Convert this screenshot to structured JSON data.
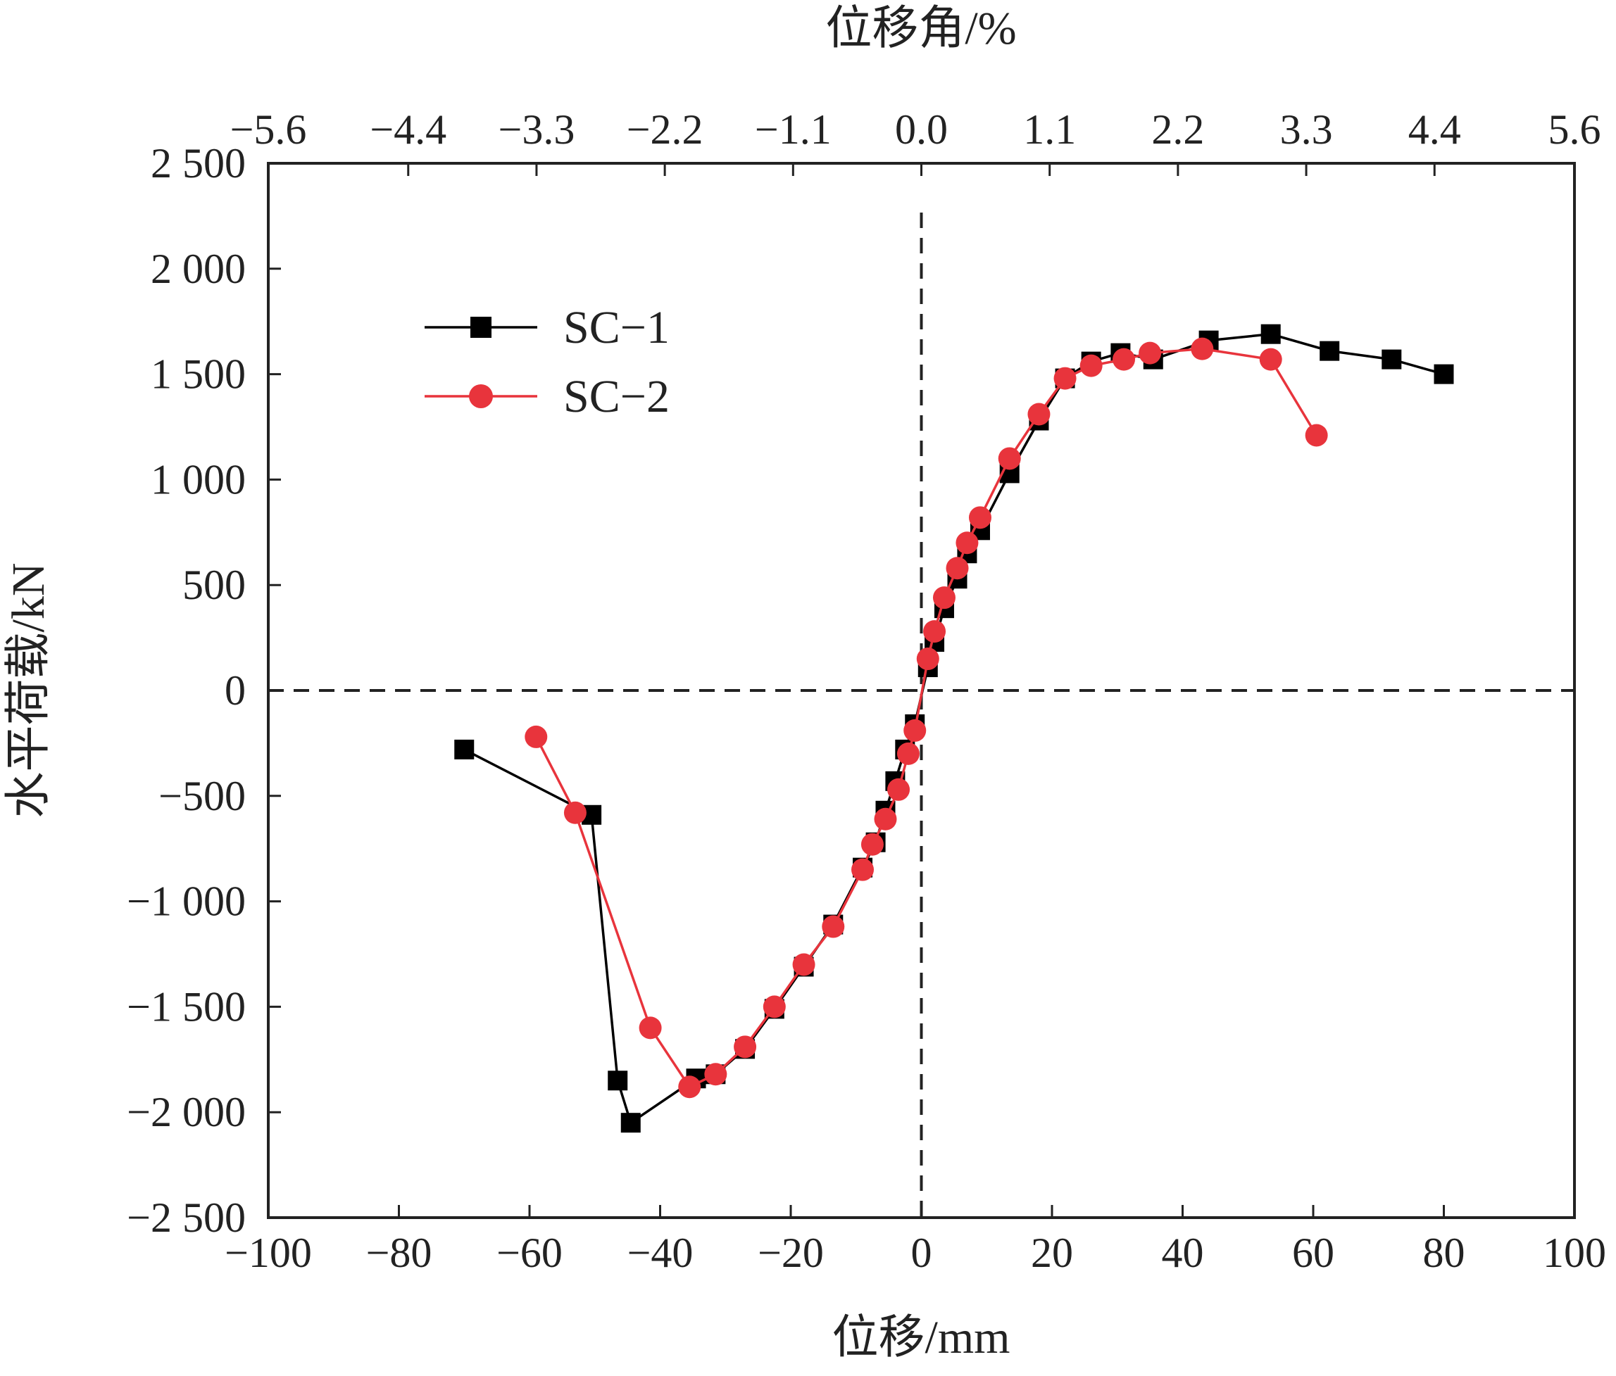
{
  "chart_data": {
    "type": "line",
    "xlabel": "位移/mm",
    "ylabel": "水平荷载/kN",
    "x2label": "位移角/%",
    "xlim": [
      -100,
      100
    ],
    "ylim": [
      -2500,
      2500
    ],
    "x2lim": [
      -5.6,
      5.6
    ],
    "xticks": [
      -100,
      -80,
      -60,
      -40,
      -20,
      0,
      20,
      40,
      60,
      80,
      100
    ],
    "xtick_labels": [
      "−100",
      "−80",
      "−60",
      "−40",
      "−20",
      "0",
      "20",
      "40",
      "60",
      "80",
      "100"
    ],
    "yticks": [
      2500,
      2000,
      1500,
      1000,
      500,
      0,
      -500,
      -1000,
      -1500,
      -2000,
      -2500
    ],
    "ytick_labels": [
      "2 500",
      "2 000",
      "1 500",
      "1 000",
      "500",
      "0",
      "−500",
      "−1 000",
      "−1 500",
      "−2 000",
      "−2 500"
    ],
    "x2ticks": [
      -5.6,
      -4.4,
      -3.3,
      -2.2,
      -1.1,
      0.0,
      1.1,
      2.2,
      3.3,
      4.4,
      5.6
    ],
    "x2tick_labels": [
      "−5.6",
      "−4.4",
      "−3.3",
      "−2.2",
      "−1.1",
      "0.0",
      "1.1",
      "2.2",
      "3.3",
      "4.4",
      "5.6"
    ],
    "grid": false,
    "legend_position": "top-left",
    "reference_lines": [
      "x=0 dashed",
      "y=0 dashed"
    ],
    "series": [
      {
        "name": "SC−1",
        "color": "#000000",
        "marker": "square",
        "points": [
          [
            -70,
            -280
          ],
          [
            -50.5,
            -590
          ],
          [
            -46.5,
            -1850
          ],
          [
            -44.5,
            -2050
          ],
          [
            -34.5,
            -1840
          ],
          [
            -31.5,
            -1820
          ],
          [
            -27,
            -1700
          ],
          [
            -22.5,
            -1510
          ],
          [
            -18,
            -1310
          ],
          [
            -13.5,
            -1110
          ],
          [
            -9,
            -840
          ],
          [
            -7,
            -720
          ],
          [
            -5.5,
            -570
          ],
          [
            -4,
            -430
          ],
          [
            -2.5,
            -280
          ],
          [
            -1,
            -160
          ],
          [
            1,
            110
          ],
          [
            2,
            230
          ],
          [
            3.5,
            390
          ],
          [
            5.5,
            530
          ],
          [
            7,
            650
          ],
          [
            9,
            760
          ],
          [
            13.5,
            1030
          ],
          [
            18,
            1280
          ],
          [
            22,
            1480
          ],
          [
            26,
            1560
          ],
          [
            30.5,
            1600
          ],
          [
            35.5,
            1570
          ],
          [
            44,
            1660
          ],
          [
            53.5,
            1690
          ],
          [
            62.5,
            1610
          ],
          [
            72,
            1570
          ],
          [
            80,
            1500
          ]
        ]
      },
      {
        "name": "SC−2",
        "color": "#e8343c",
        "marker": "circle",
        "points": [
          [
            -59,
            -220
          ],
          [
            -53,
            -580
          ],
          [
            -41.5,
            -1600
          ],
          [
            -35.5,
            -1880
          ],
          [
            -31.5,
            -1820
          ],
          [
            -27,
            -1690
          ],
          [
            -22.5,
            -1500
          ],
          [
            -18,
            -1300
          ],
          [
            -13.5,
            -1120
          ],
          [
            -9,
            -850
          ],
          [
            -7.5,
            -730
          ],
          [
            -5.5,
            -610
          ],
          [
            -3.5,
            -470
          ],
          [
            -2,
            -300
          ],
          [
            -1,
            -190
          ],
          [
            1,
            150
          ],
          [
            2,
            280
          ],
          [
            3.5,
            440
          ],
          [
            5.5,
            580
          ],
          [
            7,
            700
          ],
          [
            9,
            820
          ],
          [
            13.5,
            1100
          ],
          [
            18,
            1310
          ],
          [
            22,
            1480
          ],
          [
            26,
            1540
          ],
          [
            31,
            1570
          ],
          [
            35,
            1600
          ],
          [
            43,
            1620
          ],
          [
            53.5,
            1570
          ],
          [
            60.5,
            1210
          ]
        ]
      }
    ]
  }
}
